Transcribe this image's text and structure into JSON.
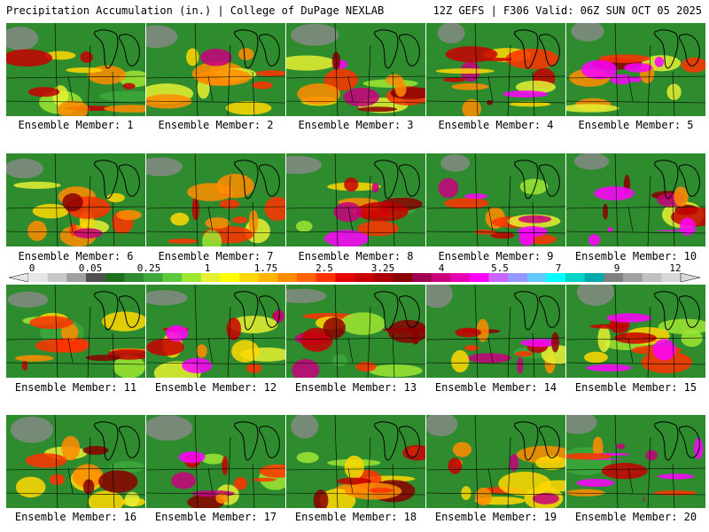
{
  "header": {
    "title_left": "Precipitation Accumulation (in.) | College of DuPage NEXLAB",
    "title_right": "12Z GEFS | F306 Valid: 06Z SUN OCT 05 2025"
  },
  "panels": [
    {
      "caption": "Ensemble Member: 1"
    },
    {
      "caption": "Ensemble Member: 2"
    },
    {
      "caption": "Ensemble Member: 3"
    },
    {
      "caption": "Ensemble Member: 4"
    },
    {
      "caption": "Ensemble Member: 5"
    },
    {
      "caption": "Ensemble Member: 6"
    },
    {
      "caption": "Ensemble Member: 7"
    },
    {
      "caption": "Ensemble Member: 8"
    },
    {
      "caption": "Ensemble Member: 9"
    },
    {
      "caption": "Ensemble Member: 10"
    },
    {
      "caption": "Ensemble Member: 11"
    },
    {
      "caption": "Ensemble Member: 12"
    },
    {
      "caption": "Ensemble Member: 13"
    },
    {
      "caption": "Ensemble Member: 14"
    },
    {
      "caption": "Ensemble Member: 15"
    },
    {
      "caption": "Ensemble Member: 16"
    },
    {
      "caption": "Ensemble Member: 17"
    },
    {
      "caption": "Ensemble Member: 18"
    },
    {
      "caption": "Ensemble Member: 19"
    },
    {
      "caption": "Ensemble Member: 20"
    }
  ],
  "colorbar": {
    "labels": [
      "0",
      "0.05",
      "0.25",
      "1",
      "1.75",
      "2.5",
      "3.25",
      "4",
      "5.5",
      "7",
      "9",
      "12"
    ],
    "colors": [
      "#e6e6e6",
      "#c8c8c8",
      "#a0a0a0",
      "#505050",
      "#1e6e1e",
      "#2e8b2e",
      "#3ca83c",
      "#5cc83c",
      "#9ee632",
      "#e6f032",
      "#ffff00",
      "#ffd700",
      "#ffb400",
      "#ff8c00",
      "#ff6400",
      "#ff3200",
      "#e60000",
      "#c80000",
      "#aa0000",
      "#8b0000",
      "#a00050",
      "#c8007d",
      "#e600b4",
      "#ff00ff",
      "#c864ff",
      "#9696ff",
      "#64c8ff",
      "#00ffff",
      "#00d2c8",
      "#00aaaa",
      "#808080",
      "#a0a0a0",
      "#c0c0c0",
      "#d8d8d8"
    ]
  }
}
